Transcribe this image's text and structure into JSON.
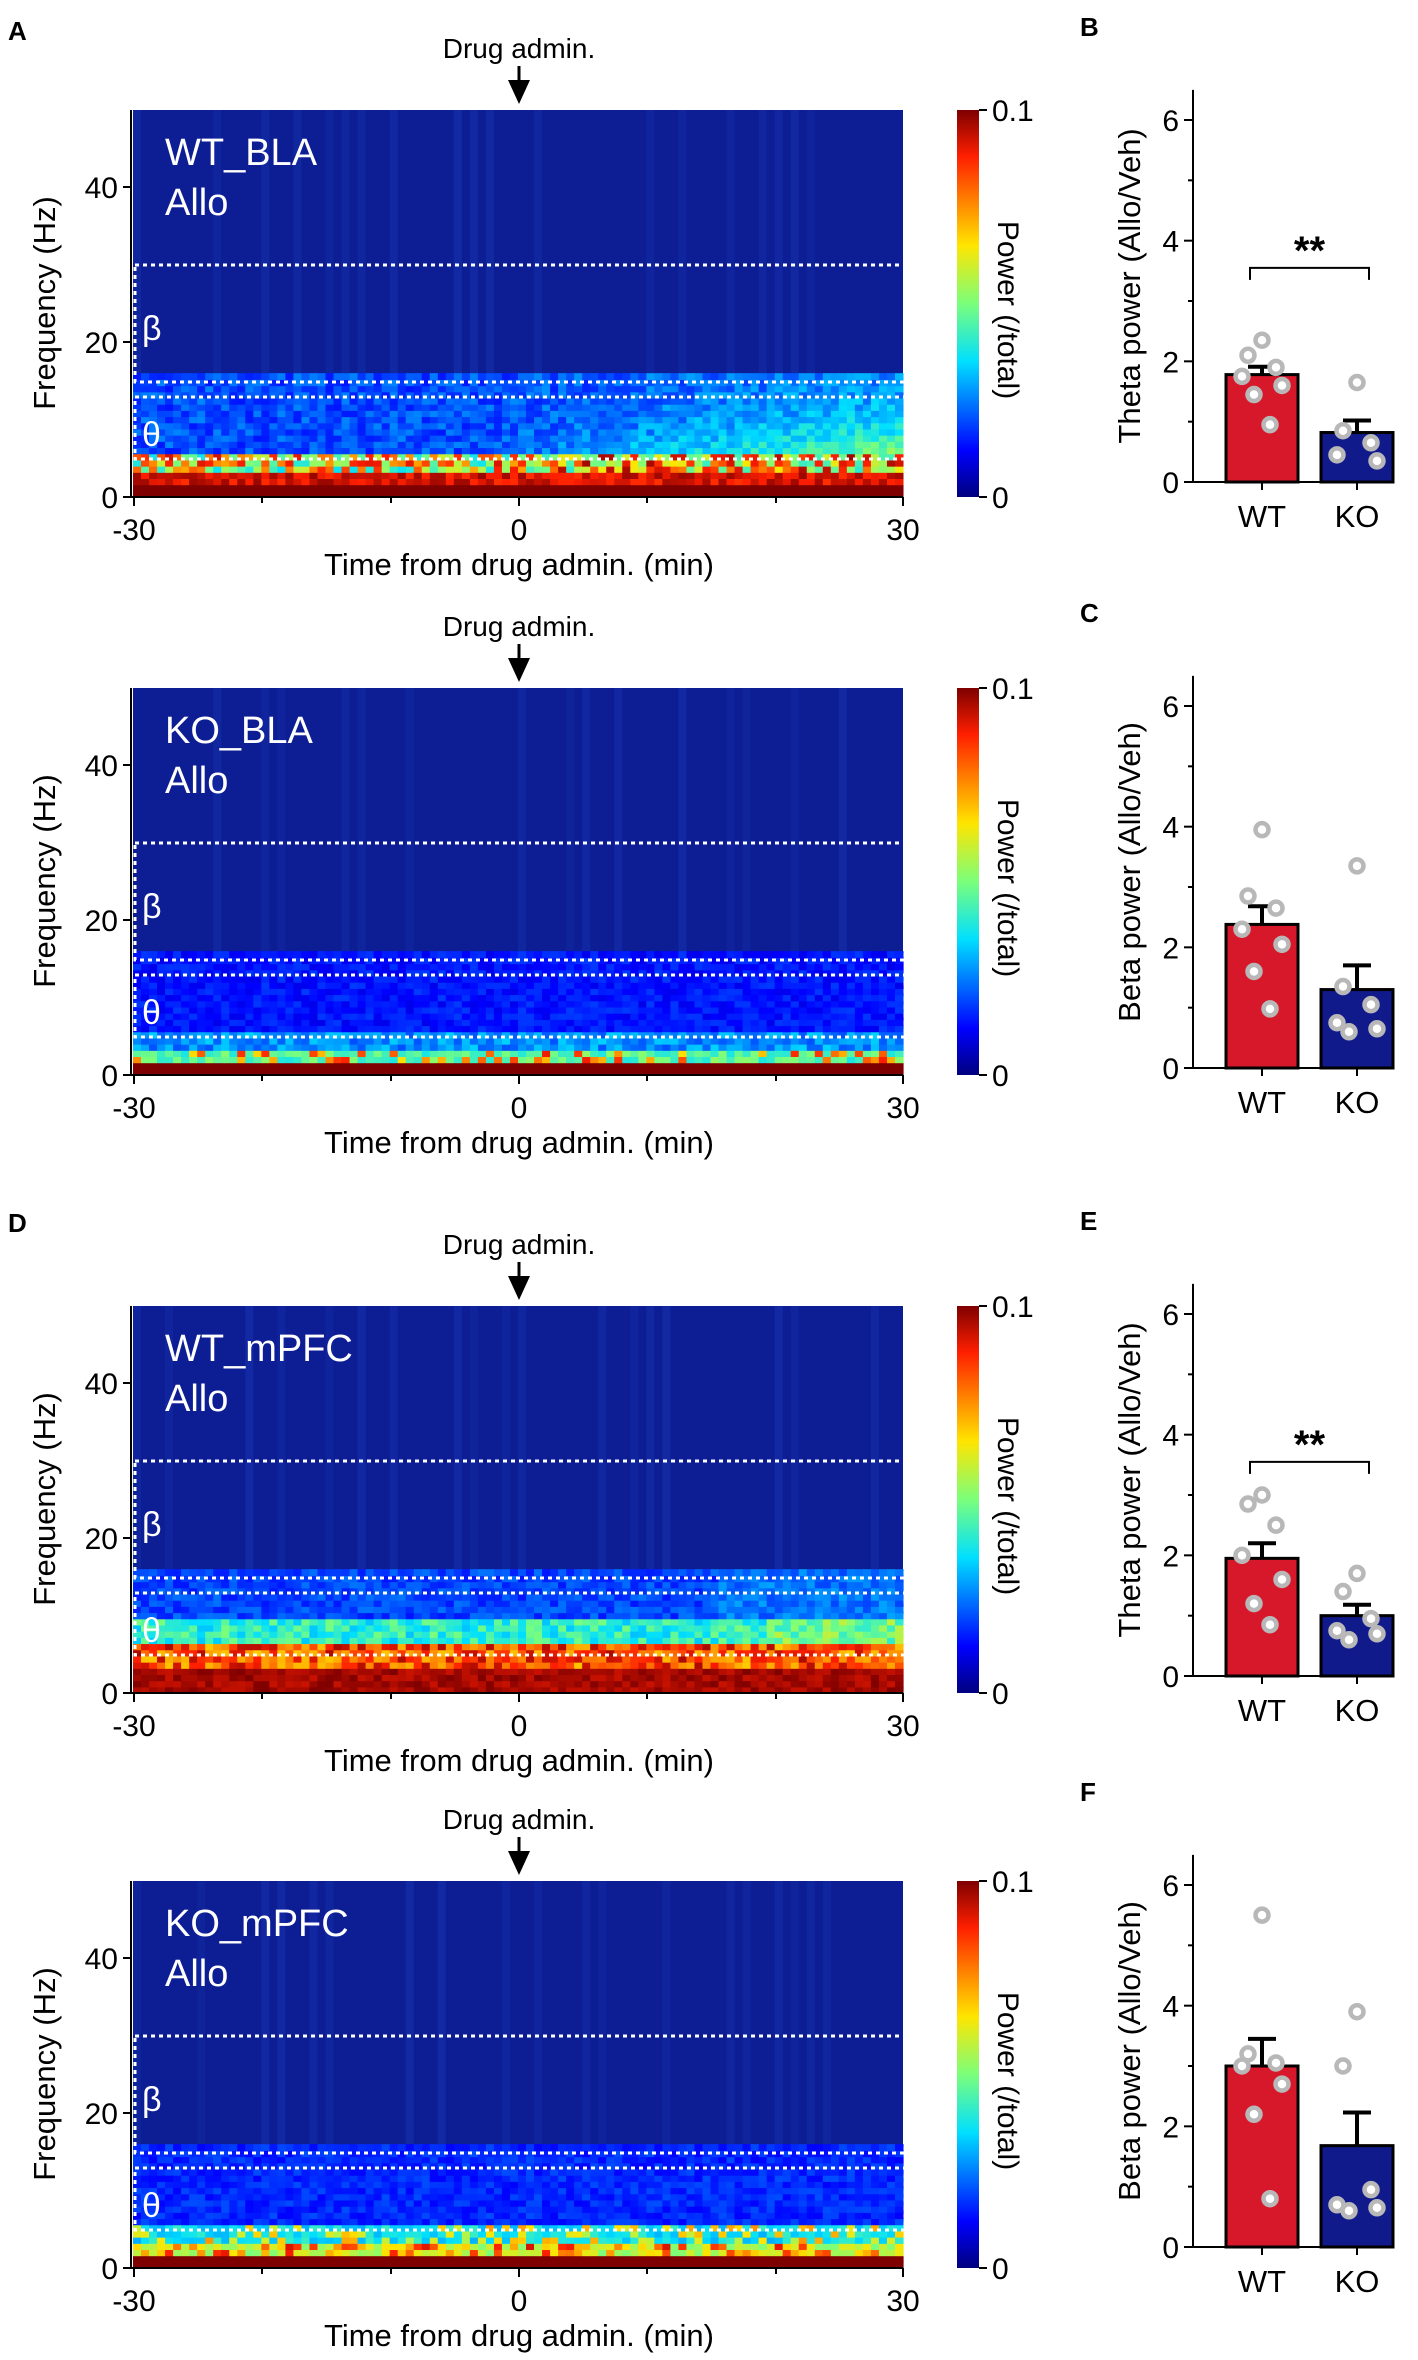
{
  "figure": {
    "spectrograms": [
      {
        "panel": "A",
        "region_label": "WT_BLA",
        "drug_label": "Allo",
        "arrow_label": "Drug admin.",
        "xlabel": "Time from drug admin. (min)",
        "ylabel": "Frequency (Hz)",
        "x_ticks": [
          "-30",
          "0",
          "30"
        ],
        "y_ticks": [
          "0",
          "20",
          "40"
        ],
        "beta_label": "β",
        "theta_label": "θ",
        "colorbar": {
          "label": "Power (/total)",
          "max_label": "0.1",
          "min_label": "0"
        }
      },
      {
        "panel": "",
        "region_label": "KO_BLA",
        "drug_label": "Allo",
        "arrow_label": "Drug admin.",
        "xlabel": "Time from drug admin. (min)",
        "ylabel": "Frequency (Hz)",
        "x_ticks": [
          "-30",
          "0",
          "30"
        ],
        "y_ticks": [
          "0",
          "20",
          "40"
        ],
        "beta_label": "β",
        "theta_label": "θ",
        "colorbar": {
          "label": "Power (/total)",
          "max_label": "0.1",
          "min_label": "0"
        }
      },
      {
        "panel": "D",
        "region_label": "WT_mPFC",
        "drug_label": "Allo",
        "arrow_label": "Drug admin.",
        "xlabel": "Time from drug admin. (min)",
        "ylabel": "Frequency (Hz)",
        "x_ticks": [
          "-30",
          "0",
          "30"
        ],
        "y_ticks": [
          "0",
          "20",
          "40"
        ],
        "beta_label": "β",
        "theta_label": "θ",
        "colorbar": {
          "label": "Power (/total)",
          "max_label": "0.1",
          "min_label": "0"
        }
      },
      {
        "panel": "",
        "region_label": "KO_mPFC",
        "drug_label": "Allo",
        "arrow_label": "Drug admin.",
        "xlabel": "Time from drug admin. (min)",
        "ylabel": "Frequency (Hz)",
        "x_ticks": [
          "-30",
          "0",
          "30"
        ],
        "y_ticks": [
          "0",
          "20",
          "40"
        ],
        "beta_label": "β",
        "theta_label": "θ",
        "colorbar": {
          "label": "Power (/total)",
          "max_label": "0.1",
          "min_label": "0"
        }
      }
    ],
    "colors": {
      "wt": "#d7182a",
      "ko": "#111a8a",
      "dot": "#b8b8b8",
      "spec_bg": "#0d1e94"
    }
  },
  "chart_data": [
    {
      "type": "heatmap",
      "panel": "A",
      "title": "WT_BLA Allo",
      "xlabel": "Time from drug admin. (min)",
      "ylabel": "Frequency (Hz)",
      "xlim": [
        -30,
        30
      ],
      "ylim": [
        0,
        50
      ],
      "colorbar_range": [
        0,
        0.1
      ],
      "colorbar_label": "Power (/total)",
      "bands": {
        "beta": [
          15,
          30
        ],
        "theta": [
          5,
          13
        ]
      },
      "event_time": 0,
      "event_label": "Drug admin."
    },
    {
      "type": "heatmap",
      "panel": "A",
      "title": "KO_BLA Allo",
      "xlabel": "Time from drug admin. (min)",
      "ylabel": "Frequency (Hz)",
      "xlim": [
        -30,
        30
      ],
      "ylim": [
        0,
        50
      ],
      "colorbar_range": [
        0,
        0.1
      ],
      "colorbar_label": "Power (/total)",
      "bands": {
        "beta": [
          15,
          30
        ],
        "theta": [
          5,
          13
        ]
      },
      "event_time": 0,
      "event_label": "Drug admin."
    },
    {
      "type": "heatmap",
      "panel": "D",
      "title": "WT_mPFC Allo",
      "xlabel": "Time from drug admin. (min)",
      "ylabel": "Frequency (Hz)",
      "xlim": [
        -30,
        30
      ],
      "ylim": [
        0,
        50
      ],
      "colorbar_range": [
        0,
        0.1
      ],
      "colorbar_label": "Power (/total)",
      "bands": {
        "beta": [
          15,
          30
        ],
        "theta": [
          5,
          13
        ]
      },
      "event_time": 0,
      "event_label": "Drug admin."
    },
    {
      "type": "heatmap",
      "panel": "D",
      "title": "KO_mPFC Allo",
      "xlabel": "Time from drug admin. (min)",
      "ylabel": "Frequency (Hz)",
      "xlim": [
        -30,
        30
      ],
      "ylim": [
        0,
        50
      ],
      "colorbar_range": [
        0,
        0.1
      ],
      "colorbar_label": "Power (/total)",
      "bands": {
        "beta": [
          15,
          30
        ],
        "theta": [
          5,
          13
        ]
      },
      "event_time": 0,
      "event_label": "Drug admin."
    },
    {
      "type": "bar",
      "panel": "B",
      "ylabel": "Theta power (Allo/Veh)",
      "ylim": [
        0,
        6.5
      ],
      "y_ticks": [
        "0",
        "2",
        "4",
        "6"
      ],
      "categories": [
        "WT",
        "KO"
      ],
      "values": [
        1.78,
        0.82
      ],
      "sem": [
        0.13,
        0.2
      ],
      "points": [
        [
          2.35,
          2.1,
          1.9,
          1.75,
          1.6,
          1.45,
          0.95
        ],
        [
          1.65,
          0.85,
          0.65,
          0.45,
          0.35
        ]
      ],
      "significance": "**"
    },
    {
      "type": "bar",
      "panel": "C",
      "ylabel": "Beta power (Allo/Veh)",
      "ylim": [
        0,
        6.5
      ],
      "y_ticks": [
        "0",
        "2",
        "4",
        "6"
      ],
      "categories": [
        "WT",
        "KO"
      ],
      "values": [
        2.38,
        1.3
      ],
      "sem": [
        0.3,
        0.4
      ],
      "points": [
        [
          3.95,
          2.85,
          2.65,
          2.3,
          2.05,
          1.6,
          0.98
        ],
        [
          3.35,
          1.35,
          1.05,
          0.75,
          0.65,
          0.6
        ]
      ],
      "significance": ""
    },
    {
      "type": "bar",
      "panel": "E",
      "ylabel": "Theta power (Allo/Veh)",
      "ylim": [
        0,
        6.5
      ],
      "y_ticks": [
        "0",
        "2",
        "4",
        "6"
      ],
      "categories": [
        "WT",
        "KO"
      ],
      "values": [
        1.95,
        1.0
      ],
      "sem": [
        0.25,
        0.18
      ],
      "points": [
        [
          3.0,
          2.85,
          2.5,
          2.0,
          1.6,
          1.2,
          0.85
        ],
        [
          1.7,
          1.4,
          0.95,
          0.75,
          0.7,
          0.6
        ]
      ],
      "significance": "**"
    },
    {
      "type": "bar",
      "panel": "F",
      "ylabel": "Beta power (Allo/Veh)",
      "ylim": [
        0,
        6.5
      ],
      "y_ticks": [
        "0",
        "2",
        "4",
        "6"
      ],
      "categories": [
        "WT",
        "KO"
      ],
      "values": [
        3.0,
        1.68
      ],
      "sem": [
        0.45,
        0.55
      ],
      "points": [
        [
          5.5,
          3.2,
          3.05,
          3.0,
          2.7,
          2.2,
          0.8
        ],
        [
          3.9,
          3.0,
          0.95,
          0.7,
          0.65,
          0.6
        ]
      ],
      "significance": ""
    }
  ]
}
